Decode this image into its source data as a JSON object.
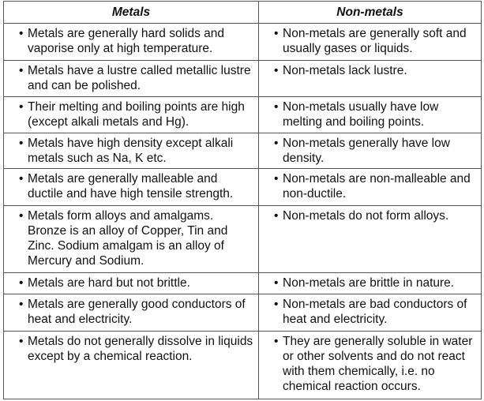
{
  "headers": [
    "Metals",
    "Non-metals"
  ],
  "rows": [
    {
      "metals": "Metals are generally hard solids and vaporise only at high temperature.",
      "nonmetals": "Non-metals are generally soft and usually gases or liquids."
    },
    {
      "metals": "Metals have a lustre called metallic lustre and can be polished.",
      "nonmetals": "Non-metals lack lustre."
    },
    {
      "metals": "Their melting and boiling points are high (except alkali metals and Hg).",
      "nonmetals": "Non-metals usually have low melting and boiling points."
    },
    {
      "metals": "Metals have high density except alkali metals such as Na, K etc.",
      "nonmetals": "Non-metals generally have low density."
    },
    {
      "metals": "Metals are generally malleable and ductile and have high tensile strength.",
      "nonmetals": "Non-metals are non-malleable and non-ductile."
    },
    {
      "metals": "Metals form alloys and amalgams. Bronze is an alloy of Copper, Tin and Zinc. Sodium amalgam is an alloy of Mercury and Sodium.",
      "nonmetals": "Non-metals do not form alloys."
    },
    {
      "metals": "Metals are hard but not brittle.",
      "nonmetals": "Non-metals are brittle in nature."
    },
    {
      "metals": "Metals are generally good conductors of heat and electricity.",
      "nonmetals": "Non-metals are bad conductors of heat and electricity."
    },
    {
      "metals": "Metals do not generally dissolve in liquids except by a chemical reaction.",
      "nonmetals": "They are generally soluble in water or other solvents and do not react with them chemically, i.e. no chemical reaction occurs."
    }
  ]
}
